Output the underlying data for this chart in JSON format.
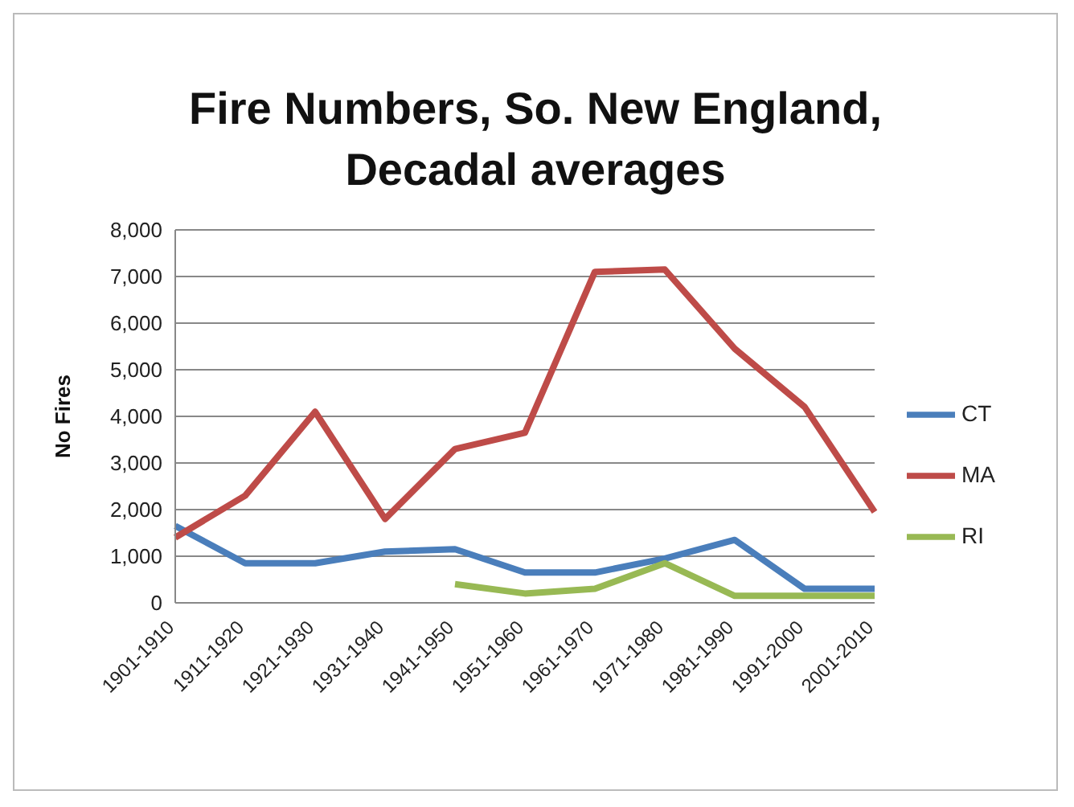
{
  "chart_data": {
    "type": "line",
    "title": "Fire Numbers, So. New England, Decadal averages",
    "ylabel": "No Fires",
    "categories": [
      "1901-1910",
      "1911-1920",
      "1921-1930",
      "1931-1940",
      "1941-1950",
      "1951-1960",
      "1961-1970",
      "1971-1980",
      "1981-1990",
      "1991-2000",
      "2001-2010"
    ],
    "series": [
      {
        "name": "CT",
        "color": "#4a7ebb",
        "values": [
          1650,
          850,
          850,
          1100,
          1150,
          650,
          650,
          950,
          1350,
          300,
          300
        ]
      },
      {
        "name": "MA",
        "color": "#be4b48",
        "values": [
          1400,
          2300,
          4100,
          1800,
          3300,
          3650,
          7100,
          7150,
          5450,
          4200,
          1950
        ]
      },
      {
        "name": "RI",
        "color": "#98b954",
        "values": [
          null,
          null,
          null,
          null,
          400,
          200,
          300,
          850,
          150,
          150,
          150
        ]
      }
    ],
    "ylim": [
      0,
      8000
    ],
    "yticks": [
      0,
      {
        "value": 1000,
        "label": "1,000"
      },
      {
        "value": 2000,
        "label": "2,000"
      },
      {
        "value": 3000,
        "label": "3,000"
      },
      {
        "value": 4000,
        "label": "4,000"
      },
      {
        "value": 5000,
        "label": "5,000"
      },
      {
        "value": 6000,
        "label": "6,000"
      },
      {
        "value": 7000,
        "label": "7,000"
      },
      {
        "value": 8000,
        "label": "8,000"
      }
    ],
    "grid": "y",
    "legend": "right",
    "marker": "none",
    "line_style": "solid"
  }
}
